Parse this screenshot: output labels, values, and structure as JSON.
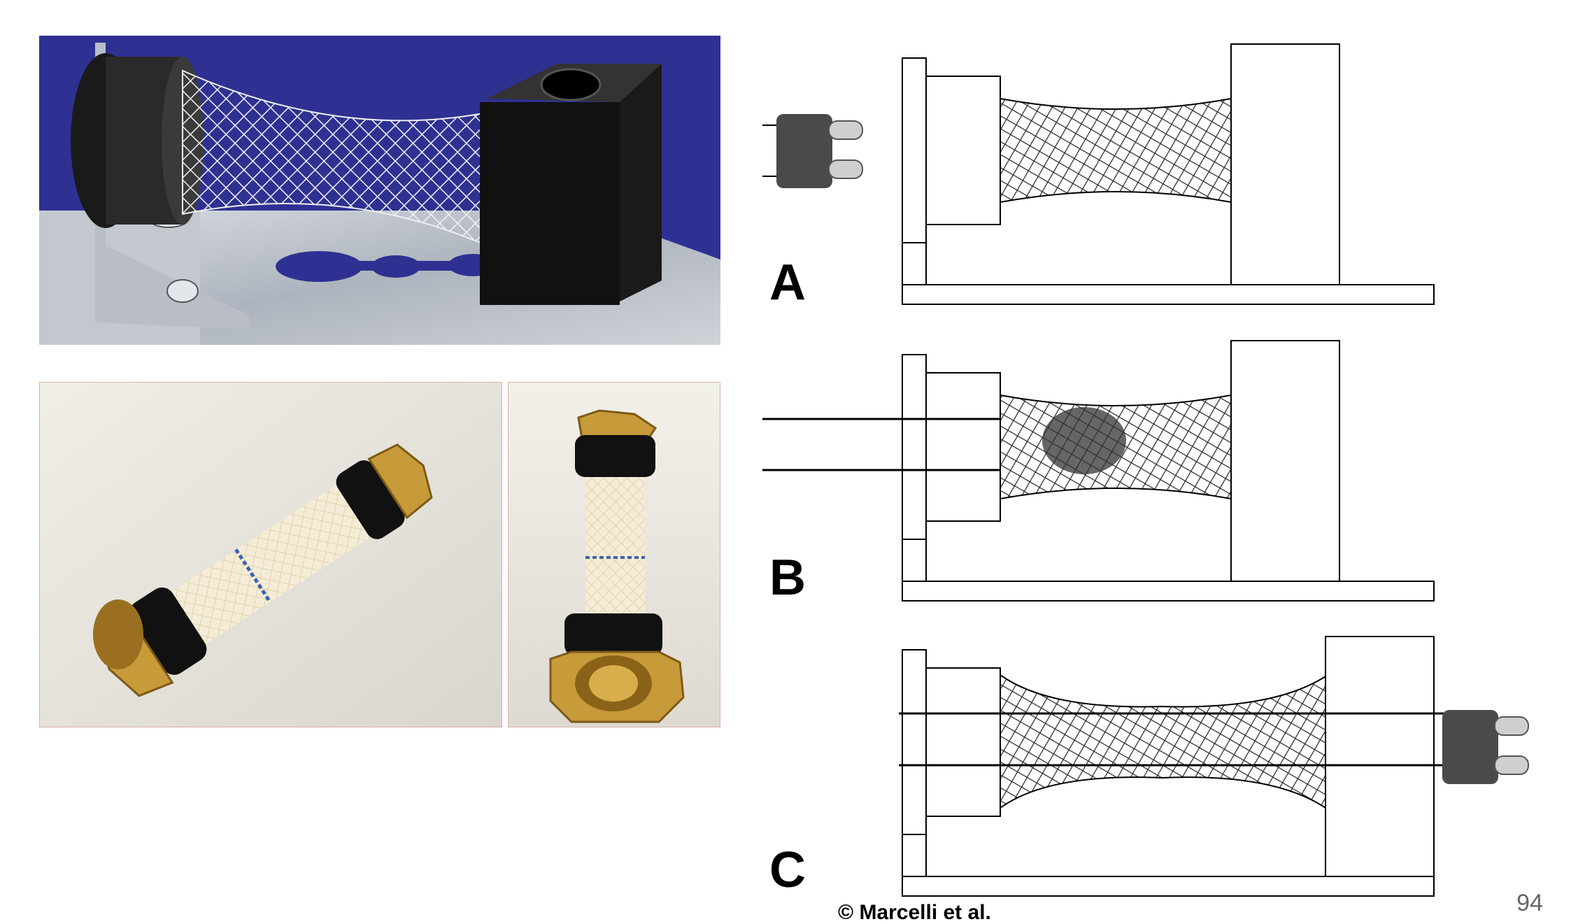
{
  "panels": {
    "a_label": "A",
    "b_label": "B",
    "c_label": "C"
  },
  "footer": {
    "copyright": "© Marcelli et al.",
    "page_number": "94"
  },
  "colors": {
    "photo_background_blue": "#2e3192",
    "diagram_stroke": "#000000",
    "mesh_dark": "#2a2a2a"
  }
}
